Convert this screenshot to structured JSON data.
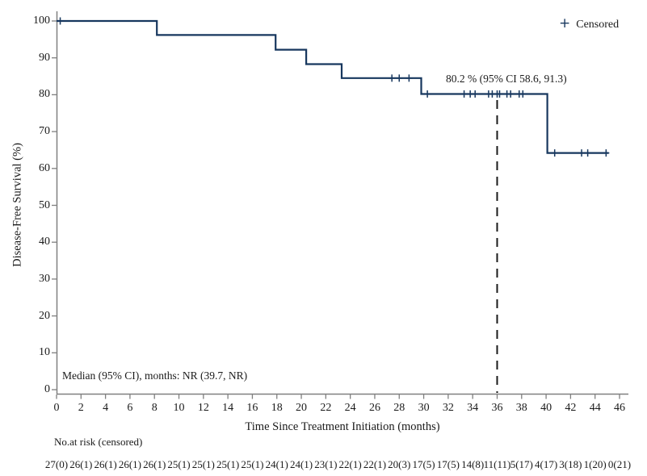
{
  "figure": {
    "legend": {
      "marker": "+",
      "label": "Censored"
    },
    "annotations": {
      "dfs_estimate": "80.2 % (95% CI 58.6, 91.3)",
      "median": "Median (95% CI), months: NR (39.7, NR)"
    },
    "risk_table": {
      "label": "No.at risk (censored)",
      "values": [
        "27(0)",
        "26(1)",
        "26(1)",
        "26(1)",
        "26(1)",
        "25(1)",
        "25(1)",
        "25(1)",
        "25(1)",
        "24(1)",
        "24(1)",
        "23(1)",
        "22(1)",
        "22(1)",
        "20(3)",
        "17(5)",
        "17(5)",
        "14(8)",
        "11(11)",
        "5(17)",
        "4(17)",
        "3(18)",
        "1(20)",
        "0(21)"
      ]
    }
  },
  "chart_data": {
    "type": "line",
    "subtype": "kaplan-meier-step",
    "title": "",
    "xlabel": "Time Since Treatment Initiation (months)",
    "ylabel": "Disease-Free Survival (%)",
    "xlim": [
      0,
      46
    ],
    "ylim": [
      0,
      100
    ],
    "xticks": [
      0,
      2,
      4,
      6,
      8,
      10,
      12,
      14,
      16,
      18,
      20,
      22,
      24,
      26,
      28,
      30,
      32,
      34,
      36,
      38,
      40,
      42,
      44,
      46
    ],
    "yticks": [
      0,
      10,
      20,
      30,
      40,
      50,
      60,
      70,
      80,
      90,
      100
    ],
    "grid": false,
    "legend_position": "top-right",
    "series": [
      {
        "name": "Disease-Free Survival",
        "color": "#17375e",
        "steps": [
          [
            0,
            100
          ],
          [
            8.2,
            100
          ],
          [
            8.2,
            96.2
          ],
          [
            17.9,
            96.2
          ],
          [
            17.9,
            92.2
          ],
          [
            20.4,
            92.2
          ],
          [
            20.4,
            88.3
          ],
          [
            23.3,
            88.3
          ],
          [
            23.3,
            84.5
          ],
          [
            29.8,
            84.5
          ],
          [
            29.8,
            80.2
          ],
          [
            40.1,
            80.2
          ],
          [
            40.1,
            64.2
          ],
          [
            45.1,
            64.2
          ]
        ]
      }
    ],
    "censored_points": [
      [
        0.3,
        100
      ],
      [
        27.4,
        84.5
      ],
      [
        28.0,
        84.5
      ],
      [
        28.8,
        84.5
      ],
      [
        30.3,
        80.2
      ],
      [
        33.3,
        80.2
      ],
      [
        33.8,
        80.2
      ],
      [
        34.2,
        80.2
      ],
      [
        35.3,
        80.2
      ],
      [
        35.6,
        80.2
      ],
      [
        36.0,
        80.2
      ],
      [
        36.2,
        80.2
      ],
      [
        36.8,
        80.2
      ],
      [
        37.1,
        80.2
      ],
      [
        37.8,
        80.2
      ],
      [
        38.1,
        80.2
      ],
      [
        40.7,
        64.2
      ],
      [
        42.9,
        64.2
      ],
      [
        43.4,
        64.2
      ],
      [
        44.9,
        64.2
      ]
    ],
    "reference_line": {
      "x": 36,
      "style": "dashed",
      "color": "#1a1a1a"
    },
    "colors": {
      "curve": "#17375e",
      "axis": "#808080",
      "text": "#1a1a1a"
    }
  }
}
